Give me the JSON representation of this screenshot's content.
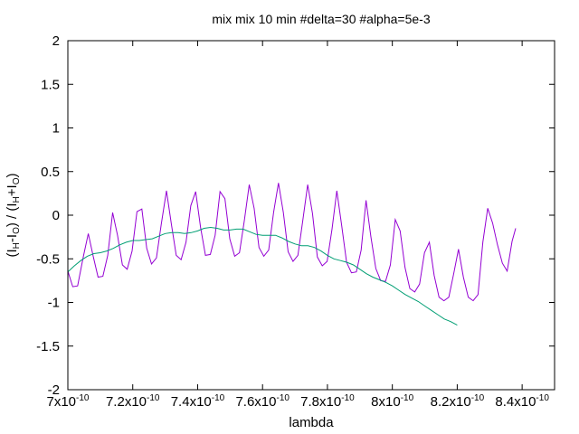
{
  "chart_data": {
    "type": "line",
    "title": "mix mix 10 min #delta=30 #alpha=5e-3",
    "xlabel": "lambda",
    "ylabel": {
      "open": "(I",
      "sub1": "H",
      "mid1": "-I",
      "sub2": "O",
      "mid2": ") / (I",
      "sub3": "H",
      "mid3": "+I",
      "sub4": "O",
      "close": ")"
    },
    "xlim": [
      7e-10,
      8.5e-10
    ],
    "ylim": [
      -2,
      2
    ],
    "x_ticks": [
      {
        "value": 7e-10,
        "mantissa": "7",
        "exponent": "-10"
      },
      {
        "value": 7.2e-10,
        "mantissa": "7.2",
        "exponent": "-10"
      },
      {
        "value": 7.4e-10,
        "mantissa": "7.4",
        "exponent": "-10"
      },
      {
        "value": 7.6e-10,
        "mantissa": "7.6",
        "exponent": "-10"
      },
      {
        "value": 7.8e-10,
        "mantissa": "7.8",
        "exponent": "-10"
      },
      {
        "value": 8e-10,
        "mantissa": "8",
        "exponent": "-10"
      },
      {
        "value": 8.2e-10,
        "mantissa": "8.2",
        "exponent": "-10"
      },
      {
        "value": 8.4e-10,
        "mantissa": "8.4",
        "exponent": "-10"
      }
    ],
    "y_ticks": [
      {
        "value": 2,
        "label": "2"
      },
      {
        "value": 1.5,
        "label": "1.5"
      },
      {
        "value": 1,
        "label": "1"
      },
      {
        "value": 0.5,
        "label": "0.5"
      },
      {
        "value": 0,
        "label": "0"
      },
      {
        "value": -0.5,
        "label": "-0.5"
      },
      {
        "value": -1,
        "label": "-1"
      },
      {
        "value": -1.5,
        "label": "-1.5"
      },
      {
        "value": -2,
        "label": "-2"
      }
    ],
    "grid": false,
    "series": [
      {
        "color": "#9400d3",
        "points": [
          [
            7e-10,
            -0.64
          ],
          [
            7.015e-10,
            -0.82
          ],
          [
            7.03e-10,
            -0.81
          ],
          [
            7.048e-10,
            -0.47
          ],
          [
            7.063e-10,
            -0.21
          ],
          [
            7.078e-10,
            -0.47
          ],
          [
            7.093e-10,
            -0.71
          ],
          [
            7.108e-10,
            -0.7
          ],
          [
            7.123e-10,
            -0.46
          ],
          [
            7.138e-10,
            0.03
          ],
          [
            7.153e-10,
            -0.23
          ],
          [
            7.168e-10,
            -0.57
          ],
          [
            7.183e-10,
            -0.62
          ],
          [
            7.198e-10,
            -0.41
          ],
          [
            7.213e-10,
            0.04
          ],
          [
            7.228e-10,
            0.07
          ],
          [
            7.243e-10,
            -0.38
          ],
          [
            7.258e-10,
            -0.56
          ],
          [
            7.273e-10,
            -0.49
          ],
          [
            7.288e-10,
            -0.1
          ],
          [
            7.304e-10,
            0.28
          ],
          [
            7.319e-10,
            -0.1
          ],
          [
            7.334e-10,
            -0.46
          ],
          [
            7.349e-10,
            -0.51
          ],
          [
            7.364e-10,
            -0.31
          ],
          [
            7.379e-10,
            0.11
          ],
          [
            7.394e-10,
            0.27
          ],
          [
            7.409e-10,
            -0.14
          ],
          [
            7.424e-10,
            -0.46
          ],
          [
            7.439e-10,
            -0.45
          ],
          [
            7.454e-10,
            -0.23
          ],
          [
            7.469e-10,
            0.27
          ],
          [
            7.484e-10,
            0.19
          ],
          [
            7.499e-10,
            -0.27
          ],
          [
            7.514e-10,
            -0.47
          ],
          [
            7.529e-10,
            -0.43
          ],
          [
            7.544e-10,
            -0.06
          ],
          [
            7.559e-10,
            0.35
          ],
          [
            7.574e-10,
            0.08
          ],
          [
            7.589e-10,
            -0.37
          ],
          [
            7.604e-10,
            -0.47
          ],
          [
            7.619e-10,
            -0.4
          ],
          [
            7.634e-10,
            0.03
          ],
          [
            7.649e-10,
            0.37
          ],
          [
            7.664e-10,
            0.03
          ],
          [
            7.679e-10,
            -0.42
          ],
          [
            7.694e-10,
            -0.53
          ],
          [
            7.709e-10,
            -0.46
          ],
          [
            7.724e-10,
            -0.06
          ],
          [
            7.739e-10,
            0.35
          ],
          [
            7.754e-10,
            0.02
          ],
          [
            7.769e-10,
            -0.48
          ],
          [
            7.784e-10,
            -0.58
          ],
          [
            7.799e-10,
            -0.53
          ],
          [
            7.814e-10,
            -0.16
          ],
          [
            7.829e-10,
            0.28
          ],
          [
            7.844e-10,
            -0.12
          ],
          [
            7.859e-10,
            -0.54
          ],
          [
            7.874e-10,
            -0.66
          ],
          [
            7.889e-10,
            -0.65
          ],
          [
            7.904e-10,
            -0.4
          ],
          [
            7.919e-10,
            0.17
          ],
          [
            7.934e-10,
            -0.25
          ],
          [
            7.949e-10,
            -0.61
          ],
          [
            7.964e-10,
            -0.75
          ],
          [
            7.979e-10,
            -0.76
          ],
          [
            7.994e-10,
            -0.57
          ],
          [
            8.009e-10,
            -0.05
          ],
          [
            8.024e-10,
            -0.18
          ],
          [
            8.039e-10,
            -0.6
          ],
          [
            8.054e-10,
            -0.84
          ],
          [
            8.069e-10,
            -0.88
          ],
          [
            8.084e-10,
            -0.79
          ],
          [
            8.099e-10,
            -0.43
          ],
          [
            8.114e-10,
            -0.31
          ],
          [
            8.129e-10,
            -0.69
          ],
          [
            8.144e-10,
            -0.94
          ],
          [
            8.159e-10,
            -0.98
          ],
          [
            8.174e-10,
            -0.94
          ],
          [
            8.189e-10,
            -0.67
          ],
          [
            8.204e-10,
            -0.39
          ],
          [
            8.219e-10,
            -0.71
          ],
          [
            8.234e-10,
            -0.94
          ],
          [
            8.249e-10,
            -0.98
          ],
          [
            8.264e-10,
            -0.91
          ],
          [
            8.279e-10,
            -0.31
          ],
          [
            8.294e-10,
            0.08
          ],
          [
            8.309e-10,
            -0.09
          ],
          [
            8.324e-10,
            -0.34
          ],
          [
            8.339e-10,
            -0.55
          ],
          [
            8.354e-10,
            -0.64
          ],
          [
            8.369e-10,
            -0.3
          ],
          [
            8.38e-10,
            -0.15
          ]
        ]
      },
      {
        "color": "#009e73",
        "points": [
          [
            7e-10,
            -0.65
          ],
          [
            7.02e-10,
            -0.58
          ],
          [
            7.04e-10,
            -0.52
          ],
          [
            7.06e-10,
            -0.47
          ],
          [
            7.08e-10,
            -0.44
          ],
          [
            7.1e-10,
            -0.43
          ],
          [
            7.12e-10,
            -0.41
          ],
          [
            7.14e-10,
            -0.38
          ],
          [
            7.16e-10,
            -0.34
          ],
          [
            7.18e-10,
            -0.31
          ],
          [
            7.2e-10,
            -0.29
          ],
          [
            7.22e-10,
            -0.29
          ],
          [
            7.24e-10,
            -0.28
          ],
          [
            7.26e-10,
            -0.27
          ],
          [
            7.28e-10,
            -0.24
          ],
          [
            7.3e-10,
            -0.21
          ],
          [
            7.32e-10,
            -0.2
          ],
          [
            7.34e-10,
            -0.2
          ],
          [
            7.36e-10,
            -0.21
          ],
          [
            7.38e-10,
            -0.2
          ],
          [
            7.4e-10,
            -0.18
          ],
          [
            7.42e-10,
            -0.15
          ],
          [
            7.44e-10,
            -0.14
          ],
          [
            7.46e-10,
            -0.15
          ],
          [
            7.48e-10,
            -0.17
          ],
          [
            7.5e-10,
            -0.17
          ],
          [
            7.52e-10,
            -0.16
          ],
          [
            7.54e-10,
            -0.16
          ],
          [
            7.56e-10,
            -0.19
          ],
          [
            7.58e-10,
            -0.22
          ],
          [
            7.6e-10,
            -0.23
          ],
          [
            7.62e-10,
            -0.23
          ],
          [
            7.64e-10,
            -0.23
          ],
          [
            7.66e-10,
            -0.26
          ],
          [
            7.68e-10,
            -0.3
          ],
          [
            7.7e-10,
            -0.33
          ],
          [
            7.72e-10,
            -0.35
          ],
          [
            7.74e-10,
            -0.35
          ],
          [
            7.76e-10,
            -0.37
          ],
          [
            7.78e-10,
            -0.41
          ],
          [
            7.8e-10,
            -0.46
          ],
          [
            7.82e-10,
            -0.5
          ],
          [
            7.84e-10,
            -0.52
          ],
          [
            7.86e-10,
            -0.54
          ],
          [
            7.88e-10,
            -0.57
          ],
          [
            7.9e-10,
            -0.62
          ],
          [
            7.92e-10,
            -0.67
          ],
          [
            7.94e-10,
            -0.71
          ],
          [
            7.96e-10,
            -0.74
          ],
          [
            7.98e-10,
            -0.77
          ],
          [
            8e-10,
            -0.81
          ],
          [
            8.02e-10,
            -0.86
          ],
          [
            8.04e-10,
            -0.91
          ],
          [
            8.06e-10,
            -0.95
          ],
          [
            8.08e-10,
            -0.99
          ],
          [
            8.1e-10,
            -1.04
          ],
          [
            8.12e-10,
            -1.09
          ],
          [
            8.14e-10,
            -1.14
          ],
          [
            8.16e-10,
            -1.19
          ],
          [
            8.18e-10,
            -1.22
          ],
          [
            8.2e-10,
            -1.26
          ]
        ]
      }
    ]
  }
}
